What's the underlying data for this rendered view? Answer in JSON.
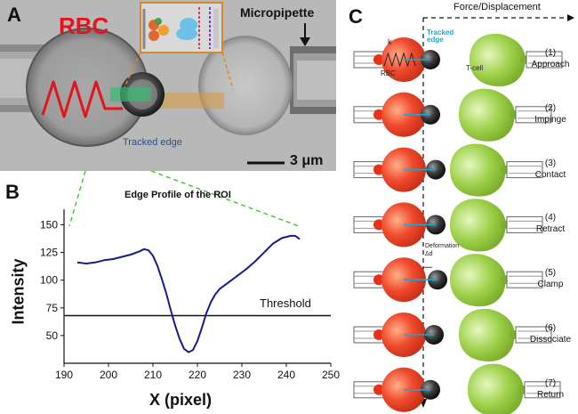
{
  "panels": {
    "a": {
      "letter": "A",
      "rbc_label": "RBC",
      "pipette_label": "Micropipette",
      "tracked_edge_label": "Tracked edge",
      "scale_bar_label": "3 μm",
      "colors": {
        "rbc_label": "#e3141b",
        "spring": "#e3141b",
        "roi": "#2fbf71",
        "pipette_shadow": "#d89a3a",
        "tracked_edge": "#2a4f8f"
      }
    },
    "b": {
      "letter": "B",
      "threshold_label": "Threshold",
      "threshold_value": 68
    },
    "c": {
      "letter": "C",
      "axis_label": "Force/Displacement",
      "rbc_label": "RBC",
      "spring_label": "k",
      "tracked_edge_label": "Tracked edge",
      "tcell_label": "T-cell",
      "deformation_label": "Deformation",
      "delta_label": "Δd",
      "colors": {
        "rbc": "#f04a2c",
        "tcell": "#9ed04a",
        "bead": "#3a3a3a",
        "tracked_edge": "#1aa6d6",
        "dashed_line": "#111111"
      },
      "steps": [
        {
          "number": "(1)",
          "name": "Approach"
        },
        {
          "number": "(2)",
          "name": "Impinge"
        },
        {
          "number": "(3)",
          "name": "Contact"
        },
        {
          "number": "(4)",
          "name": "Retract"
        },
        {
          "number": "(5)",
          "name": "Clamp"
        },
        {
          "number": "(6)",
          "name": "Dissociate"
        },
        {
          "number": "(7)",
          "name": "Return"
        }
      ]
    }
  },
  "chart_data": {
    "type": "line",
    "title": "Edge Profile of the ROI",
    "xlabel": "X (pixel)",
    "ylabel": "Intensity",
    "xlim": [
      190,
      250
    ],
    "ylim": [
      25,
      160
    ],
    "xticks": [
      190,
      200,
      210,
      220,
      230,
      240,
      250
    ],
    "yticks": [
      50,
      75,
      100,
      125,
      150
    ],
    "series": [
      {
        "name": "Edge profile",
        "color": "#1a1a8c",
        "x": [
          193,
          195,
          197,
          199,
          201,
          203,
          205,
          207,
          208,
          209,
          210,
          211,
          212,
          213,
          214,
          215,
          216,
          217,
          218,
          219,
          220,
          221,
          222,
          223,
          224,
          225,
          227,
          229,
          231,
          233,
          235,
          237,
          239,
          241,
          242,
          243
        ],
        "y": [
          116,
          115,
          116,
          118,
          119,
          121,
          123,
          126,
          128,
          127,
          122,
          113,
          101,
          88,
          73,
          59,
          47,
          38,
          35,
          37,
          45,
          57,
          70,
          80,
          87,
          92,
          98,
          104,
          110,
          117,
          125,
          133,
          138,
          140,
          140,
          137
        ]
      }
    ],
    "threshold": 68
  }
}
